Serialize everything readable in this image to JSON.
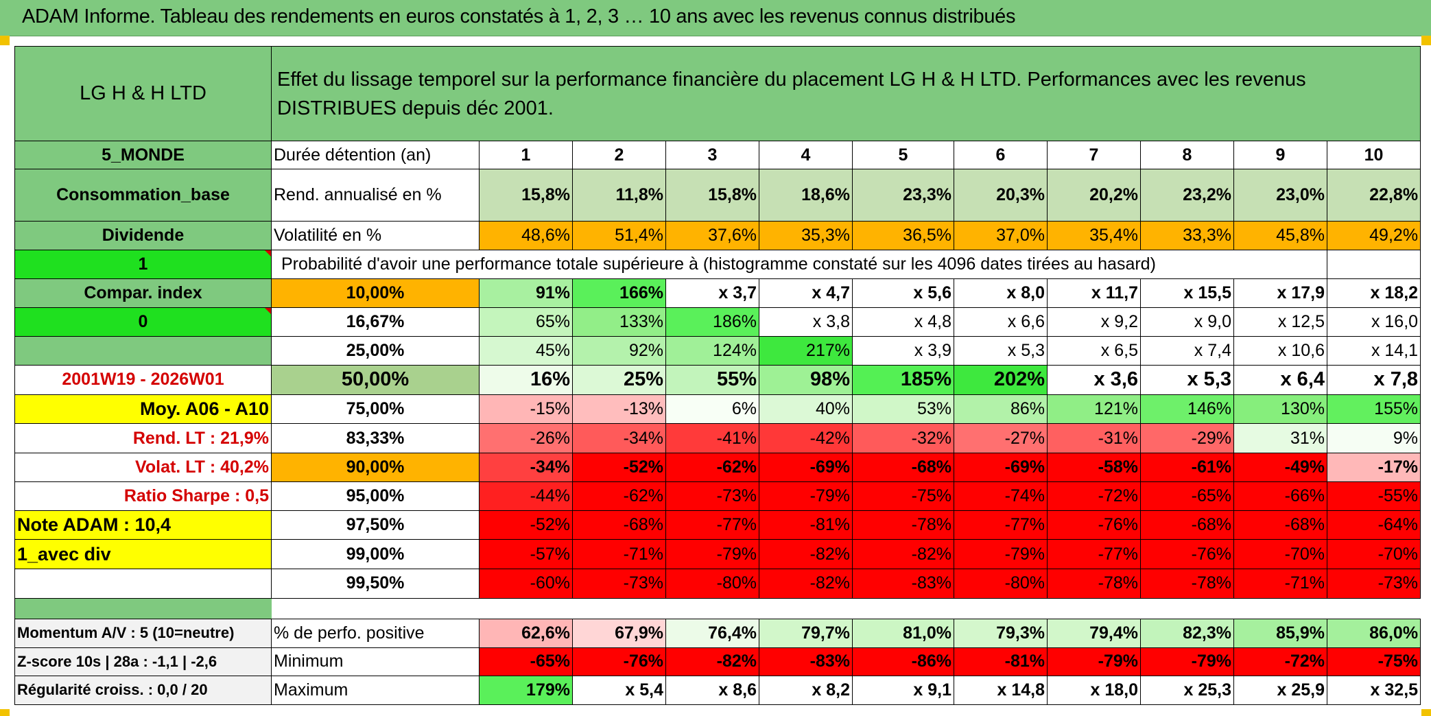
{
  "banner": {
    "title": "ADAM Informe. Tableau des rendements en euros constatés à 1, 2, 3 … 10 ans avec les revenus connus distribués"
  },
  "header": {
    "fund_name": "LG H & H LTD",
    "description": "Effet du lissage temporel sur la performance financière du placement LG H & H LTD. Performances avec les revenus DISTRIBUES depuis déc 2001."
  },
  "info": {
    "category": "5_MONDE",
    "profile": "Consommation_base",
    "income": "Dividende",
    "flag_1": "1",
    "compar_index": "Compar. index",
    "flag_0": "0",
    "period": "2001W19 - 2026W01",
    "moy": "Moy. A06 - A10",
    "rend_lt": "Rend. LT :   21,9%",
    "volat_lt": "Volat. LT :   40,2%",
    "sharpe": "Ratio Sharpe :    0,5",
    "note": "Note ADAM : 10,4",
    "mode": "1_avec div",
    "momentum": "Momentum A/V : 5 (10=neutre)",
    "zscore": "Z-score 10s | 28a : -1,1 | -2,6",
    "regularite": "Régularité croiss. : 0,0 / 20"
  },
  "stats": {
    "duration_label": "Durée détention (an)",
    "years": [
      "1",
      "2",
      "3",
      "4",
      "5",
      "6",
      "7",
      "8",
      "9",
      "10"
    ],
    "rend_label": "Rend. annualisé en %",
    "rend": [
      "15,8%",
      "11,8%",
      "15,8%",
      "18,6%",
      "23,3%",
      "20,3%",
      "20,2%",
      "23,2%",
      "23,0%",
      "22,8%"
    ],
    "vol_label": "Volatilité en %",
    "vol": [
      "48,6%",
      "51,4%",
      "37,6%",
      "35,3%",
      "36,5%",
      "37,0%",
      "35,4%",
      "33,3%",
      "45,8%",
      "49,2%"
    ],
    "prob_label": "Probabilité d'avoir une performance totale supérieure à (histogramme constaté sur les 4096 dates tirées au hasard)"
  },
  "probabilities": [
    {
      "p": "10,00%",
      "v": [
        "91%",
        "166%",
        "x 3,7",
        "x 4,7",
        "x 5,6",
        "x 8,0",
        "x 11,7",
        "x 15,5",
        "x 17,9",
        "x 18,2"
      ]
    },
    {
      "p": "16,67%",
      "v": [
        "65%",
        "133%",
        "186%",
        "x 3,8",
        "x 4,8",
        "x 6,6",
        "x 9,2",
        "x 9,0",
        "x 12,5",
        "x 16,0"
      ]
    },
    {
      "p": "25,00%",
      "v": [
        "45%",
        "92%",
        "124%",
        "217%",
        "x 3,9",
        "x 5,3",
        "x 6,5",
        "x 7,4",
        "x 10,6",
        "x 14,1"
      ]
    },
    {
      "p": "50,00%",
      "v": [
        "16%",
        "25%",
        "55%",
        "98%",
        "185%",
        "202%",
        "x 3,6",
        "x 5,3",
        "x 6,4",
        "x 7,8"
      ]
    },
    {
      "p": "75,00%",
      "v": [
        "-15%",
        "-13%",
        "6%",
        "40%",
        "53%",
        "86%",
        "121%",
        "146%",
        "130%",
        "155%"
      ]
    },
    {
      "p": "83,33%",
      "v": [
        "-26%",
        "-34%",
        "-41%",
        "-42%",
        "-32%",
        "-27%",
        "-31%",
        "-29%",
        "31%",
        "9%"
      ]
    },
    {
      "p": "90,00%",
      "v": [
        "-34%",
        "-52%",
        "-62%",
        "-69%",
        "-68%",
        "-69%",
        "-58%",
        "-61%",
        "-49%",
        "-17%"
      ]
    },
    {
      "p": "95,00%",
      "v": [
        "-44%",
        "-62%",
        "-73%",
        "-79%",
        "-75%",
        "-74%",
        "-72%",
        "-65%",
        "-66%",
        "-55%"
      ]
    },
    {
      "p": "97,50%",
      "v": [
        "-52%",
        "-68%",
        "-77%",
        "-81%",
        "-78%",
        "-77%",
        "-76%",
        "-68%",
        "-68%",
        "-64%"
      ]
    },
    {
      "p": "99,00%",
      "v": [
        "-57%",
        "-71%",
        "-79%",
        "-82%",
        "-82%",
        "-79%",
        "-77%",
        "-76%",
        "-70%",
        "-70%"
      ]
    },
    {
      "p": "99,50%",
      "v": [
        "-60%",
        "-73%",
        "-80%",
        "-82%",
        "-83%",
        "-80%",
        "-78%",
        "-78%",
        "-71%",
        "-73%"
      ]
    }
  ],
  "summary": {
    "pos_label": "% de perfo. positive",
    "pos": [
      "62,6%",
      "67,9%",
      "76,4%",
      "79,7%",
      "81,0%",
      "79,3%",
      "79,4%",
      "82,3%",
      "85,9%",
      "86,0%"
    ],
    "min_label": "Minimum",
    "min": [
      "-65%",
      "-76%",
      "-82%",
      "-83%",
      "-86%",
      "-81%",
      "-79%",
      "-79%",
      "-72%",
      "-75%"
    ],
    "max_label": "Maximum",
    "max": [
      "179%",
      "x 5,4",
      "x 8,6",
      "x 8,2",
      "x 9,1",
      "x 14,8",
      "x 18,0",
      "x 25,3",
      "x 25,9",
      "x 32,5"
    ]
  },
  "colors": {
    "header_green": "#7fc97f",
    "bright_green": "#1fe01f",
    "orange": "#ffb300",
    "yellow": "#ffff00",
    "red_text": "#d40000",
    "rend_green": "#c6e0b4",
    "cell_red": "#ff0000"
  },
  "cell_colors": {
    "probabilities": [
      [
        "#a8f0a0",
        "#5af05a",
        "#fff",
        "#fff",
        "#fff",
        "#fff",
        "#fff",
        "#fff",
        "#fff",
        "#fff"
      ],
      [
        "#c4f5bc",
        "#92ee88",
        "#5af05a",
        "#fff",
        "#fff",
        "#fff",
        "#fff",
        "#fff",
        "#fff",
        "#fff"
      ],
      [
        "#d6f8d0",
        "#b4f2ac",
        "#a0f098",
        "#3ee83e",
        "#fff",
        "#fff",
        "#fff",
        "#fff",
        "#fff",
        "#fff"
      ],
      [
        "#eefcea",
        "#dcf9d6",
        "#c2f4bb",
        "#9ef195",
        "#54f054",
        "#3ee83e",
        "#fff",
        "#fff",
        "#fff",
        "#fff"
      ],
      [
        "#ffb6b6",
        "#ffbdbd",
        "#f8fff6",
        "#dcf9d6",
        "#d0f7c8",
        "#b2f2a9",
        "#90ee86",
        "#6ef06a",
        "#86ee7c",
        "#62f05e"
      ],
      [
        "#ff7070",
        "#ff5a5a",
        "#ff3a3a",
        "#ff3838",
        "#ff5a5a",
        "#ff7070",
        "#ff6060",
        "#ff6868",
        "#e6fbe2",
        "#f6fef4"
      ],
      [
        "#ff4040",
        "#ff0000",
        "#ff0000",
        "#ff0000",
        "#ff0000",
        "#ff0000",
        "#ff0000",
        "#ff0000",
        "#ff0000",
        "#ffb8b8"
      ],
      [
        "#ff2020",
        "#ff0000",
        "#ff0000",
        "#ff0000",
        "#ff0000",
        "#ff0000",
        "#ff0000",
        "#ff0000",
        "#ff0000",
        "#ff0000"
      ],
      [
        "#ff0000",
        "#ff0000",
        "#ff0000",
        "#ff0000",
        "#ff0000",
        "#ff0000",
        "#ff0000",
        "#ff0000",
        "#ff0000",
        "#ff0000"
      ],
      [
        "#ff0000",
        "#ff0000",
        "#ff0000",
        "#ff0000",
        "#ff0000",
        "#ff0000",
        "#ff0000",
        "#ff0000",
        "#ff0000",
        "#ff0000"
      ],
      [
        "#ff0000",
        "#ff0000",
        "#ff0000",
        "#ff0000",
        "#ff0000",
        "#ff0000",
        "#ff0000",
        "#ff0000",
        "#ff0000",
        "#ff0000"
      ]
    ],
    "pos": [
      "#ffb6b6",
      "#ffd6d6",
      "#ecfbe8",
      "#d2f7ca",
      "#ccf6c4",
      "#d4f7cc",
      "#d2f7ca",
      "#c2f4bb",
      "#a6f09e",
      "#a4f09c"
    ],
    "min": [
      "#ff0000",
      "#ff0000",
      "#ff0000",
      "#ff0000",
      "#ff0000",
      "#ff0000",
      "#ff0000",
      "#ff0000",
      "#ff0000",
      "#ff0000"
    ],
    "max": [
      "#5af05a",
      "#fff",
      "#fff",
      "#fff",
      "#fff",
      "#fff",
      "#fff",
      "#fff",
      "#fff",
      "#fff"
    ]
  }
}
